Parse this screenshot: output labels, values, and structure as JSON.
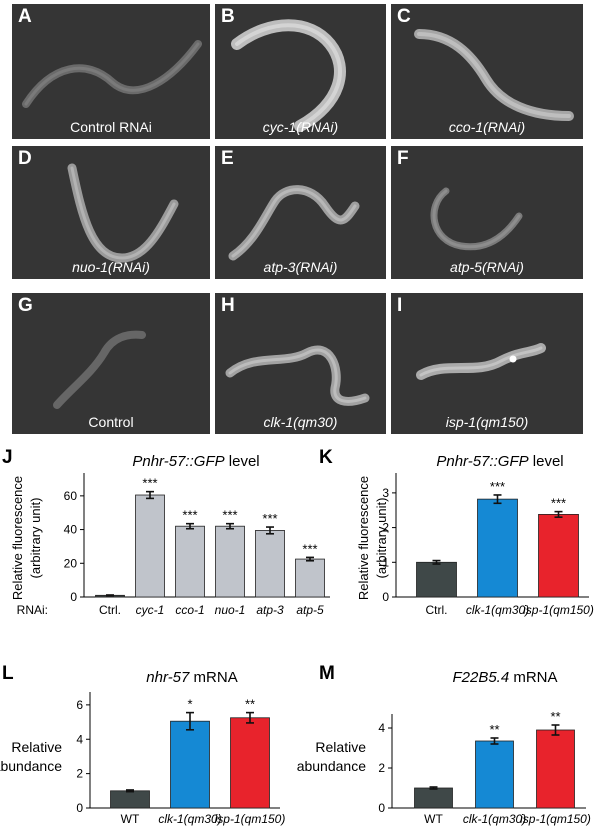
{
  "panels": [
    {
      "letter": "A",
      "caption": "Control RNAi",
      "italic": false
    },
    {
      "letter": "B",
      "caption": "cyc-1(RNAi)",
      "italic": true
    },
    {
      "letter": "C",
      "caption": "cco-1(RNAi)",
      "italic": true
    },
    {
      "letter": "D",
      "caption": "nuo-1(RNAi)",
      "italic": true
    },
    {
      "letter": "E",
      "caption": "atp-3(RNAi)",
      "italic": true
    },
    {
      "letter": "F",
      "caption": "atp-5(RNAi)",
      "italic": true
    },
    {
      "letter": "G",
      "caption": "Control",
      "italic": false
    },
    {
      "letter": "H",
      "caption": "clk-1(qm30)",
      "italic": true
    },
    {
      "letter": "I",
      "caption": "isp-1(qm150)",
      "italic": true
    }
  ],
  "chart_data": [
    {
      "id": "J",
      "type": "bar",
      "letter": "J",
      "title_italic": "Pnhr-57::GFP",
      "title_rest": " level",
      "ylabel_lines": [
        "Relative fluorescence",
        "(arbitrary unit)"
      ],
      "row_label": "RNAi:",
      "categories": [
        "Ctrl.",
        "cyc-1",
        "cco-1",
        "nuo-1",
        "atp-3",
        "atp-5"
      ],
      "italic_categories": [
        false,
        true,
        true,
        true,
        true,
        true
      ],
      "values": [
        1,
        60.5,
        42,
        42,
        39.5,
        22.5
      ],
      "errors": [
        0.2,
        2,
        1.5,
        1.5,
        2,
        1
      ],
      "significance": [
        "",
        "***",
        "***",
        "***",
        "***",
        "***"
      ],
      "colors": [
        "#3f4848",
        "#c0c4cb",
        "#c0c4cb",
        "#c0c4cb",
        "#c0c4cb",
        "#c0c4cb"
      ],
      "ylim": [
        0,
        70
      ],
      "yticks": [
        0,
        20,
        40,
        60
      ]
    },
    {
      "id": "K",
      "type": "bar",
      "letter": "K",
      "title_italic": "Pnhr-57::GFP",
      "title_rest": " level",
      "ylabel_lines": [
        "Relative fluorescence",
        "(arbitrary unit)"
      ],
      "categories": [
        "Ctrl.",
        "clk-1(qm30)",
        "isp-1(qm150)"
      ],
      "italic_categories": [
        false,
        true,
        true
      ],
      "values": [
        1,
        2.82,
        2.38
      ],
      "errors": [
        0.05,
        0.12,
        0.08
      ],
      "significance": [
        "",
        "***",
        "***"
      ],
      "colors": [
        "#3f4848",
        "#1589d4",
        "#e8232c"
      ],
      "ylim": [
        0,
        3.4
      ],
      "yticks": [
        0,
        1,
        2,
        3
      ]
    },
    {
      "id": "L",
      "type": "bar",
      "letter": "L",
      "title_italic": "nhr-57",
      "title_rest": " mRNA",
      "ylabel_lines": [
        "Relative",
        "abundance"
      ],
      "categories": [
        "WT",
        "clk-1(qm30)",
        "isp-1(qm150)"
      ],
      "italic_categories": [
        false,
        true,
        true
      ],
      "values": [
        1,
        5.05,
        5.25
      ],
      "errors": [
        0.05,
        0.5,
        0.3
      ],
      "significance": [
        "",
        "*",
        "**"
      ],
      "colors": [
        "#3f4848",
        "#1589d4",
        "#e8232c"
      ],
      "ylim": [
        0,
        6.4
      ],
      "yticks": [
        0,
        2,
        4,
        6
      ]
    },
    {
      "id": "M",
      "type": "bar",
      "letter": "M",
      "title_italic": "F22B5.4",
      "title_rest": " mRNA",
      "ylabel_lines": [
        "Relative",
        "abundance"
      ],
      "categories": [
        "WT",
        "clk-1(qm30)",
        "isp-1(qm150)"
      ],
      "italic_categories": [
        false,
        true,
        true
      ],
      "values": [
        1,
        3.35,
        3.9
      ],
      "errors": [
        0.05,
        0.15,
        0.25
      ],
      "significance": [
        "",
        "**",
        "**"
      ],
      "colors": [
        "#3f4848",
        "#1589d4",
        "#e8232c"
      ],
      "ylim": [
        0,
        4.4
      ],
      "yticks": [
        0,
        2,
        4
      ]
    }
  ]
}
